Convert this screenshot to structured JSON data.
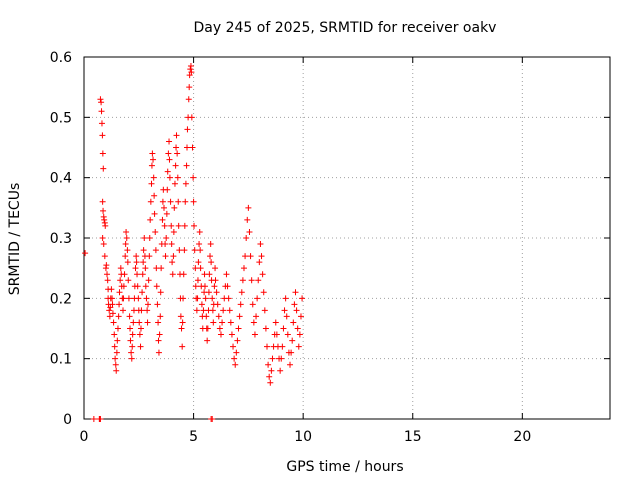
{
  "chart_data": {
    "type": "scatter",
    "title": "Day 245 of 2025, SRMTID for receiver oakv",
    "xlabel": "GPS time / hours",
    "ylabel": "SRMTID / TECUs",
    "xlim": [
      0,
      24
    ],
    "ylim": [
      0,
      0.6
    ],
    "x_ticks": [
      0,
      5,
      10,
      15,
      20
    ],
    "x_tick_labels": [
      "0",
      "5",
      "10",
      "15",
      "20"
    ],
    "y_ticks": [
      0,
      0.1,
      0.2,
      0.3,
      0.4,
      0.5,
      0.6
    ],
    "y_tick_labels": [
      "0",
      "0.1",
      "0.2",
      "0.3",
      "0.4",
      "0.5",
      "0.6"
    ],
    "grid": true,
    "marker": "plus",
    "color": "#ff0000",
    "series": [
      {
        "name": "SRMTID",
        "points": [
          [
            0.05,
            0.275
          ],
          [
            0.45,
            0.0
          ],
          [
            0.7,
            0.0
          ],
          [
            0.72,
            0.0
          ],
          [
            0.75,
            0.0
          ],
          [
            5.8,
            0.0
          ],
          [
            5.85,
            0.0
          ],
          [
            0.75,
            0.53
          ],
          [
            0.78,
            0.525
          ],
          [
            0.8,
            0.51
          ],
          [
            0.82,
            0.49
          ],
          [
            0.84,
            0.47
          ],
          [
            0.86,
            0.44
          ],
          [
            0.88,
            0.415
          ],
          [
            0.85,
            0.36
          ],
          [
            0.87,
            0.345
          ],
          [
            0.9,
            0.335
          ],
          [
            0.92,
            0.33
          ],
          [
            0.95,
            0.325
          ],
          [
            0.97,
            0.32
          ],
          [
            0.85,
            0.3
          ],
          [
            0.9,
            0.29
          ],
          [
            0.95,
            0.27
          ],
          [
            1.0,
            0.25
          ],
          [
            1.02,
            0.255
          ],
          [
            1.05,
            0.24
          ],
          [
            1.08,
            0.23
          ],
          [
            1.1,
            0.215
          ],
          [
            1.1,
            0.2
          ],
          [
            1.12,
            0.19
          ],
          [
            1.15,
            0.18
          ],
          [
            1.18,
            0.17
          ],
          [
            1.2,
            0.185
          ],
          [
            1.22,
            0.2
          ],
          [
            1.25,
            0.215
          ],
          [
            1.28,
            0.2
          ],
          [
            1.3,
            0.19
          ],
          [
            1.32,
            0.175
          ],
          [
            1.35,
            0.16
          ],
          [
            1.38,
            0.14
          ],
          [
            1.4,
            0.12
          ],
          [
            1.42,
            0.1
          ],
          [
            1.45,
            0.09
          ],
          [
            1.47,
            0.08
          ],
          [
            1.5,
            0.11
          ],
          [
            1.52,
            0.13
          ],
          [
            1.55,
            0.15
          ],
          [
            1.58,
            0.17
          ],
          [
            1.6,
            0.19
          ],
          [
            1.62,
            0.21
          ],
          [
            1.65,
            0.23
          ],
          [
            1.68,
            0.25
          ],
          [
            1.7,
            0.24
          ],
          [
            1.72,
            0.22
          ],
          [
            1.75,
            0.2
          ],
          [
            1.78,
            0.18
          ],
          [
            1.8,
            0.2
          ],
          [
            1.82,
            0.22
          ],
          [
            1.85,
            0.24
          ],
          [
            1.88,
            0.27
          ],
          [
            1.9,
            0.29
          ],
          [
            1.92,
            0.31
          ],
          [
            1.95,
            0.3
          ],
          [
            1.98,
            0.28
          ],
          [
            2.0,
            0.26
          ],
          [
            2.02,
            0.23
          ],
          [
            2.05,
            0.2
          ],
          [
            2.08,
            0.17
          ],
          [
            2.1,
            0.15
          ],
          [
            2.12,
            0.13
          ],
          [
            2.15,
            0.11
          ],
          [
            2.18,
            0.1
          ],
          [
            2.2,
            0.12
          ],
          [
            2.22,
            0.14
          ],
          [
            2.25,
            0.16
          ],
          [
            2.28,
            0.18
          ],
          [
            2.3,
            0.2
          ],
          [
            2.32,
            0.22
          ],
          [
            2.35,
            0.25
          ],
          [
            2.38,
            0.27
          ],
          [
            2.4,
            0.26
          ],
          [
            2.42,
            0.24
          ],
          [
            2.45,
            0.22
          ],
          [
            2.48,
            0.2
          ],
          [
            2.5,
            0.18
          ],
          [
            2.52,
            0.16
          ],
          [
            2.55,
            0.14
          ],
          [
            2.58,
            0.12
          ],
          [
            2.6,
            0.15
          ],
          [
            2.62,
            0.18
          ],
          [
            2.65,
            0.21
          ],
          [
            2.68,
            0.24
          ],
          [
            2.7,
            0.26
          ],
          [
            2.72,
            0.28
          ],
          [
            2.75,
            0.3
          ],
          [
            2.78,
            0.27
          ],
          [
            2.8,
            0.25
          ],
          [
            2.82,
            0.22
          ],
          [
            2.85,
            0.2
          ],
          [
            2.88,
            0.18
          ],
          [
            2.9,
            0.16
          ],
          [
            2.92,
            0.19
          ],
          [
            2.95,
            0.23
          ],
          [
            2.98,
            0.27
          ],
          [
            3.0,
            0.3
          ],
          [
            3.02,
            0.33
          ],
          [
            3.05,
            0.36
          ],
          [
            3.08,
            0.39
          ],
          [
            3.1,
            0.42
          ],
          [
            3.12,
            0.44
          ],
          [
            3.15,
            0.43
          ],
          [
            3.18,
            0.4
          ],
          [
            3.2,
            0.37
          ],
          [
            3.22,
            0.34
          ],
          [
            3.25,
            0.31
          ],
          [
            3.28,
            0.28
          ],
          [
            3.3,
            0.25
          ],
          [
            3.32,
            0.22
          ],
          [
            3.35,
            0.19
          ],
          [
            3.38,
            0.16
          ],
          [
            3.4,
            0.13
          ],
          [
            3.42,
            0.11
          ],
          [
            3.45,
            0.14
          ],
          [
            3.48,
            0.17
          ],
          [
            3.5,
            0.21
          ],
          [
            3.52,
            0.25
          ],
          [
            3.55,
            0.29
          ],
          [
            3.58,
            0.33
          ],
          [
            3.6,
            0.36
          ],
          [
            3.62,
            0.38
          ],
          [
            3.65,
            0.35
          ],
          [
            3.68,
            0.32
          ],
          [
            3.7,
            0.29
          ],
          [
            3.72,
            0.27
          ],
          [
            3.75,
            0.3
          ],
          [
            3.78,
            0.34
          ],
          [
            3.8,
            0.38
          ],
          [
            3.82,
            0.41
          ],
          [
            3.85,
            0.44
          ],
          [
            3.88,
            0.46
          ],
          [
            3.9,
            0.43
          ],
          [
            3.92,
            0.4
          ],
          [
            3.95,
            0.36
          ],
          [
            3.98,
            0.32
          ],
          [
            4.0,
            0.29
          ],
          [
            4.02,
            0.26
          ],
          [
            4.05,
            0.24
          ],
          [
            4.08,
            0.27
          ],
          [
            4.1,
            0.31
          ],
          [
            4.12,
            0.35
          ],
          [
            4.15,
            0.39
          ],
          [
            4.18,
            0.42
          ],
          [
            4.2,
            0.45
          ],
          [
            4.22,
            0.47
          ],
          [
            4.25,
            0.44
          ],
          [
            4.28,
            0.4
          ],
          [
            4.3,
            0.36
          ],
          [
            4.32,
            0.32
          ],
          [
            4.35,
            0.28
          ],
          [
            4.38,
            0.24
          ],
          [
            4.4,
            0.2
          ],
          [
            4.42,
            0.17
          ],
          [
            4.45,
            0.15
          ],
          [
            4.48,
            0.12
          ],
          [
            4.5,
            0.16
          ],
          [
            4.52,
            0.2
          ],
          [
            4.55,
            0.24
          ],
          [
            4.58,
            0.28
          ],
          [
            4.6,
            0.32
          ],
          [
            4.62,
            0.36
          ],
          [
            4.65,
            0.39
          ],
          [
            4.68,
            0.42
          ],
          [
            4.7,
            0.45
          ],
          [
            4.72,
            0.48
          ],
          [
            4.75,
            0.5
          ],
          [
            4.78,
            0.53
          ],
          [
            4.8,
            0.55
          ],
          [
            4.82,
            0.57
          ],
          [
            4.85,
            0.58
          ],
          [
            4.88,
            0.585
          ],
          [
            4.9,
            0.575
          ],
          [
            4.92,
            0.5
          ],
          [
            4.95,
            0.45
          ],
          [
            4.98,
            0.4
          ],
          [
            5.0,
            0.36
          ],
          [
            5.02,
            0.32
          ],
          [
            5.05,
            0.28
          ],
          [
            5.08,
            0.25
          ],
          [
            5.1,
            0.22
          ],
          [
            5.12,
            0.2
          ],
          [
            5.15,
            0.18
          ],
          [
            5.18,
            0.2
          ],
          [
            5.2,
            0.23
          ],
          [
            5.22,
            0.26
          ],
          [
            5.25,
            0.29
          ],
          [
            5.28,
            0.31
          ],
          [
            5.3,
            0.28
          ],
          [
            5.32,
            0.25
          ],
          [
            5.35,
            0.22
          ],
          [
            5.38,
            0.19
          ],
          [
            5.4,
            0.17
          ],
          [
            5.42,
            0.15
          ],
          [
            5.45,
            0.18
          ],
          [
            5.48,
            0.21
          ],
          [
            5.5,
            0.24
          ],
          [
            5.52,
            0.22
          ],
          [
            5.55,
            0.2
          ],
          [
            5.58,
            0.17
          ],
          [
            5.6,
            0.15
          ],
          [
            5.62,
            0.13
          ],
          [
            5.65,
            0.15
          ],
          [
            5.68,
            0.18
          ],
          [
            5.7,
            0.21
          ],
          [
            5.72,
            0.24
          ],
          [
            5.75,
            0.27
          ],
          [
            5.78,
            0.29
          ],
          [
            5.8,
            0.26
          ],
          [
            5.82,
            0.23
          ],
          [
            5.85,
            0.2
          ],
          [
            5.88,
            0.18
          ],
          [
            5.9,
            0.16
          ],
          [
            5.92,
            0.19
          ],
          [
            5.95,
            0.22
          ],
          [
            5.98,
            0.25
          ],
          [
            6.0,
            0.23
          ],
          [
            6.05,
            0.21
          ],
          [
            6.1,
            0.19
          ],
          [
            6.15,
            0.17
          ],
          [
            6.2,
            0.15
          ],
          [
            6.25,
            0.14
          ],
          [
            6.3,
            0.16
          ],
          [
            6.35,
            0.18
          ],
          [
            6.4,
            0.2
          ],
          [
            6.45,
            0.22
          ],
          [
            6.5,
            0.24
          ],
          [
            6.55,
            0.22
          ],
          [
            6.6,
            0.2
          ],
          [
            6.65,
            0.18
          ],
          [
            6.7,
            0.16
          ],
          [
            6.75,
            0.14
          ],
          [
            6.8,
            0.12
          ],
          [
            6.85,
            0.1
          ],
          [
            6.9,
            0.09
          ],
          [
            6.95,
            0.11
          ],
          [
            7.0,
            0.13
          ],
          [
            7.05,
            0.15
          ],
          [
            7.1,
            0.17
          ],
          [
            7.15,
            0.19
          ],
          [
            7.2,
            0.21
          ],
          [
            7.25,
            0.23
          ],
          [
            7.3,
            0.25
          ],
          [
            7.35,
            0.27
          ],
          [
            7.4,
            0.3
          ],
          [
            7.45,
            0.33
          ],
          [
            7.5,
            0.35
          ],
          [
            7.55,
            0.31
          ],
          [
            7.6,
            0.27
          ],
          [
            7.65,
            0.23
          ],
          [
            7.7,
            0.19
          ],
          [
            7.75,
            0.16
          ],
          [
            7.8,
            0.14
          ],
          [
            7.85,
            0.17
          ],
          [
            7.9,
            0.2
          ],
          [
            7.95,
            0.23
          ],
          [
            8.0,
            0.26
          ],
          [
            8.05,
            0.29
          ],
          [
            8.1,
            0.27
          ],
          [
            8.15,
            0.24
          ],
          [
            8.2,
            0.21
          ],
          [
            8.25,
            0.18
          ],
          [
            8.3,
            0.15
          ],
          [
            8.35,
            0.12
          ],
          [
            8.4,
            0.09
          ],
          [
            8.45,
            0.07
          ],
          [
            8.5,
            0.06
          ],
          [
            8.55,
            0.08
          ],
          [
            8.6,
            0.1
          ],
          [
            8.65,
            0.12
          ],
          [
            8.7,
            0.14
          ],
          [
            8.75,
            0.16
          ],
          [
            8.8,
            0.14
          ],
          [
            8.85,
            0.12
          ],
          [
            8.9,
            0.1
          ],
          [
            8.95,
            0.08
          ],
          [
            9.0,
            0.1
          ],
          [
            9.05,
            0.12
          ],
          [
            9.1,
            0.15
          ],
          [
            9.15,
            0.18
          ],
          [
            9.2,
            0.2
          ],
          [
            9.25,
            0.17
          ],
          [
            9.3,
            0.14
          ],
          [
            9.35,
            0.11
          ],
          [
            9.4,
            0.09
          ],
          [
            9.45,
            0.11
          ],
          [
            9.5,
            0.13
          ],
          [
            9.55,
            0.16
          ],
          [
            9.6,
            0.19
          ],
          [
            9.65,
            0.21
          ],
          [
            9.7,
            0.18
          ],
          [
            9.75,
            0.15
          ],
          [
            9.8,
            0.12
          ],
          [
            9.85,
            0.14
          ],
          [
            9.9,
            0.17
          ],
          [
            9.95,
            0.2
          ]
        ]
      }
    ]
  }
}
